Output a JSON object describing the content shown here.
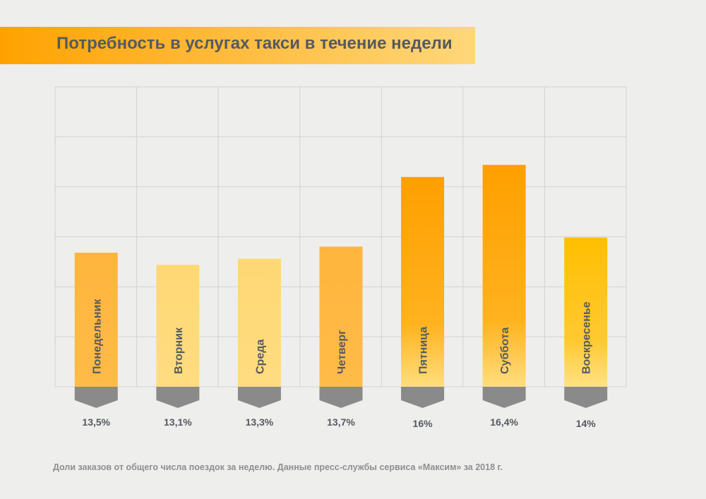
{
  "title": "Потребность в услугах такси в течение недели",
  "source_note": "Доли заказов от общего числа поездок за неделю. Данные пресс-службы сервиса «Максим» за 2018 г.",
  "colors": {
    "background": "#eeeeec",
    "grid": "#d2d2d2",
    "chevron": "#8a8a8a",
    "label_text": "#555a5f",
    "bar_orange": "#ffa000",
    "bar_mid": "#ffb43c",
    "bar_light": "#ffd86b",
    "bar_yellow": "#ffc107"
  },
  "chart_data": {
    "type": "bar",
    "categories": [
      "Понедельник",
      "Вторник",
      "Среда",
      "Четверг",
      "Пятница",
      "Суббота",
      "Воскресенье"
    ],
    "values": [
      13.5,
      13.1,
      13.3,
      13.7,
      16,
      16.4,
      14
    ],
    "value_labels": [
      "13,5%",
      "13,1%",
      "13,3%",
      "13,7%",
      "16%",
      "16,4%",
      "14%"
    ],
    "bar_styles": [
      "mid",
      "light",
      "light",
      "mid",
      "orange",
      "orange",
      "yellow"
    ],
    "grid": true,
    "legend": "none"
  }
}
